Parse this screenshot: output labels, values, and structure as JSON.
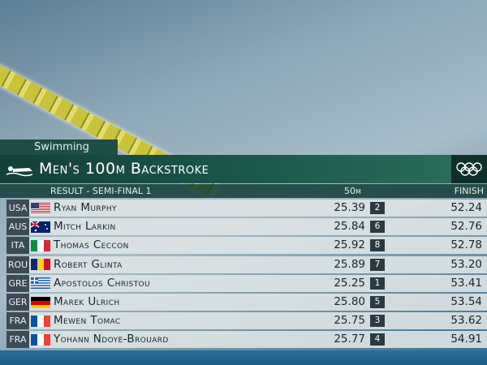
{
  "header": {
    "category": "Swimming",
    "title": "Men's 100m Backstroke",
    "subtitle": "RESULT - SEMI-FINAL 1"
  },
  "table": {
    "columns": [
      "50m",
      "FINISH"
    ],
    "rows": [
      [
        "USA",
        "Ryan Murphy",
        "25.39",
        "2",
        "52.24"
      ],
      [
        "AUS",
        "Mitch Larkin",
        "25.84",
        "6",
        "52.76"
      ],
      [
        "ITA",
        "Thomas Ceccon",
        "25.92",
        "8",
        "52.78"
      ],
      [
        "ROU",
        "Robert Glinta",
        "25.89",
        "7",
        "53.20"
      ],
      [
        "GRE",
        "Apostolos Christou",
        "25.25",
        "1",
        "53.41"
      ],
      [
        "GER",
        "Marek Ulrich",
        "25.80",
        "5",
        "53.54"
      ],
      [
        "FRA",
        "Mewen Tomac",
        "25.75",
        "3",
        "53.62"
      ],
      [
        "FRA",
        "Yohann Ndoye-Brouard",
        "25.77",
        "4",
        "54.91"
      ]
    ]
  }
}
